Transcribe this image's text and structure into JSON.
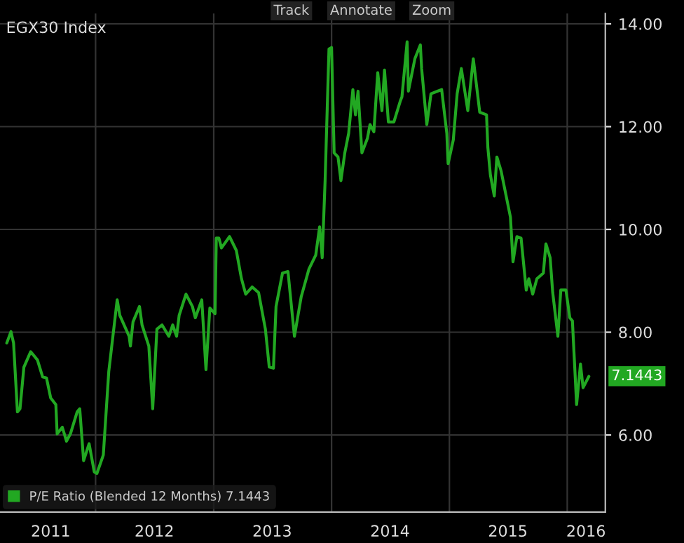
{
  "chart_data": {
    "type": "line",
    "title": "EGX30 Index",
    "x": [
      "2011-04-01",
      "2011-04-14",
      "2011-04-22",
      "2011-05-04",
      "2011-05-12",
      "2011-05-24",
      "2011-06-14",
      "2011-07-05",
      "2011-07-21",
      "2011-08-02",
      "2011-08-15",
      "2011-08-31",
      "2011-09-04",
      "2011-09-20",
      "2011-10-03",
      "2011-10-15",
      "2011-11-05",
      "2011-11-13",
      "2011-11-25",
      "2011-12-12",
      "2011-12-28",
      "2012-01-05",
      "2012-01-25",
      "2012-02-11",
      "2012-03-08",
      "2012-03-16",
      "2012-04-14",
      "2012-04-18",
      "2012-04-26",
      "2012-05-16",
      "2012-05-24",
      "2012-06-14",
      "2012-06-26",
      "2012-07-09",
      "2012-07-25",
      "2012-08-15",
      "2012-08-27",
      "2012-09-08",
      "2012-09-16",
      "2012-10-07",
      "2012-10-27",
      "2012-11-05",
      "2012-11-25",
      "2012-12-08",
      "2012-12-20",
      "2013-01-05",
      "2013-01-09",
      "2013-01-17",
      "2013-01-25",
      "2013-02-19",
      "2013-03-12",
      "2013-03-28",
      "2013-04-10",
      "2013-04-30",
      "2013-05-20",
      "2013-06-10",
      "2013-06-22",
      "2013-07-05",
      "2013-07-13",
      "2013-08-02",
      "2013-08-19",
      "2013-09-08",
      "2013-09-29",
      "2013-10-23",
      "2013-11-13",
      "2013-11-25",
      "2013-12-03",
      "2013-12-12",
      "2013-12-24",
      "2014-01-01",
      "2014-01-09",
      "2014-01-21",
      "2014-01-30",
      "2014-02-11",
      "2014-02-23",
      "2014-03-08",
      "2014-03-16",
      "2014-03-24",
      "2014-04-05",
      "2014-04-22",
      "2014-04-30",
      "2014-05-12",
      "2014-05-24",
      "2014-06-06",
      "2014-06-14",
      "2014-06-26",
      "2014-07-13",
      "2014-08-02",
      "2014-08-07",
      "2014-08-23",
      "2014-08-27",
      "2014-09-16",
      "2014-10-03",
      "2014-10-07",
      "2014-10-23",
      "2014-11-05",
      "2014-11-25",
      "2014-12-08",
      "2014-12-24",
      "2014-12-28",
      "2015-01-13",
      "2015-01-25",
      "2015-02-07",
      "2015-02-27",
      "2015-03-16",
      "2015-04-05",
      "2015-04-26",
      "2015-04-30",
      "2015-05-08",
      "2015-05-20",
      "2015-05-28",
      "2015-06-10",
      "2015-07-09",
      "2015-07-17",
      "2015-07-29",
      "2015-08-11",
      "2015-08-27",
      "2015-09-04",
      "2015-09-16",
      "2015-09-29",
      "2015-10-19",
      "2015-10-27",
      "2015-11-09",
      "2015-11-17",
      "2015-12-03",
      "2015-12-12",
      "2015-12-28",
      "2016-01-09",
      "2016-01-17",
      "2016-01-30",
      "2016-02-11",
      "2016-02-19",
      "2016-03-08"
    ],
    "series": [
      {
        "name": "P/E Ratio (Blended 12 Months) 7.1443",
        "color": "#22a822",
        "values": [
          7.79,
          8.01,
          7.79,
          6.45,
          6.51,
          7.32,
          7.62,
          7.46,
          7.13,
          7.11,
          6.72,
          6.59,
          6.02,
          6.15,
          5.88,
          6.02,
          6.45,
          6.51,
          5.5,
          5.83,
          5.28,
          5.25,
          5.61,
          7.24,
          8.63,
          8.33,
          7.92,
          7.73,
          8.2,
          8.5,
          8.14,
          7.73,
          6.51,
          8.06,
          8.14,
          7.92,
          8.14,
          7.92,
          8.33,
          8.74,
          8.5,
          8.28,
          8.63,
          7.27,
          8.47,
          8.36,
          9.83,
          9.83,
          9.64,
          9.86,
          9.59,
          9.04,
          8.74,
          8.88,
          8.77,
          8.06,
          7.32,
          7.3,
          8.5,
          9.15,
          9.18,
          7.92,
          8.69,
          9.23,
          9.5,
          10.05,
          9.45,
          10.95,
          13.51,
          13.54,
          11.49,
          11.41,
          10.95,
          11.49,
          11.87,
          12.72,
          12.23,
          12.69,
          11.49,
          11.77,
          12.04,
          11.9,
          13.05,
          12.31,
          13.1,
          12.09,
          12.09,
          12.5,
          12.58,
          13.65,
          12.69,
          13.32,
          13.59,
          13.13,
          12.04,
          12.64,
          12.69,
          12.72,
          11.87,
          11.28,
          11.74,
          12.64,
          13.13,
          12.31,
          13.32,
          12.28,
          12.23,
          11.6,
          11.06,
          10.65,
          11.41,
          11.14,
          10.24,
          9.37,
          9.86,
          9.83,
          8.82,
          9.04,
          8.74,
          9.04,
          9.15,
          9.72,
          9.45,
          8.77,
          7.92,
          8.82,
          8.82,
          8.28,
          8.22,
          6.59,
          7.38,
          6.92,
          7.14
        ]
      }
    ],
    "xlim": [
      "2011-03-11",
      "2016-04-28"
    ],
    "xticks": [
      {
        "value": "2011-08-15",
        "label": "2011"
      },
      {
        "value": "2012-01-01",
        "label": null
      },
      {
        "value": "2012-07-01",
        "label": "2012"
      },
      {
        "value": "2013-01-01",
        "label": null
      },
      {
        "value": "2013-07-01",
        "label": "2013"
      },
      {
        "value": "2014-01-01",
        "label": null
      },
      {
        "value": "2014-07-01",
        "label": "2014"
      },
      {
        "value": "2015-01-01",
        "label": null
      },
      {
        "value": "2015-07-01",
        "label": "2015"
      },
      {
        "value": "2016-01-01",
        "label": null
      },
      {
        "value": "2016-02-28",
        "label": "2016"
      }
    ],
    "ylim": [
      4.5,
      14.2
    ],
    "yticks": [
      {
        "value": 6,
        "label": "6.00"
      },
      {
        "value": 8,
        "label": "8.00"
      },
      {
        "value": 10,
        "label": "10.00"
      },
      {
        "value": 12,
        "label": "12.00"
      },
      {
        "value": 14,
        "label": "14.00"
      }
    ],
    "grid": true,
    "legend": "bottom left",
    "line_style": "solid",
    "marker": "none",
    "annotations": [
      "Track",
      "Annotate",
      "Zoom",
      {
        "text": "7.1443",
        "y": 7.1443
      }
    ]
  }
}
